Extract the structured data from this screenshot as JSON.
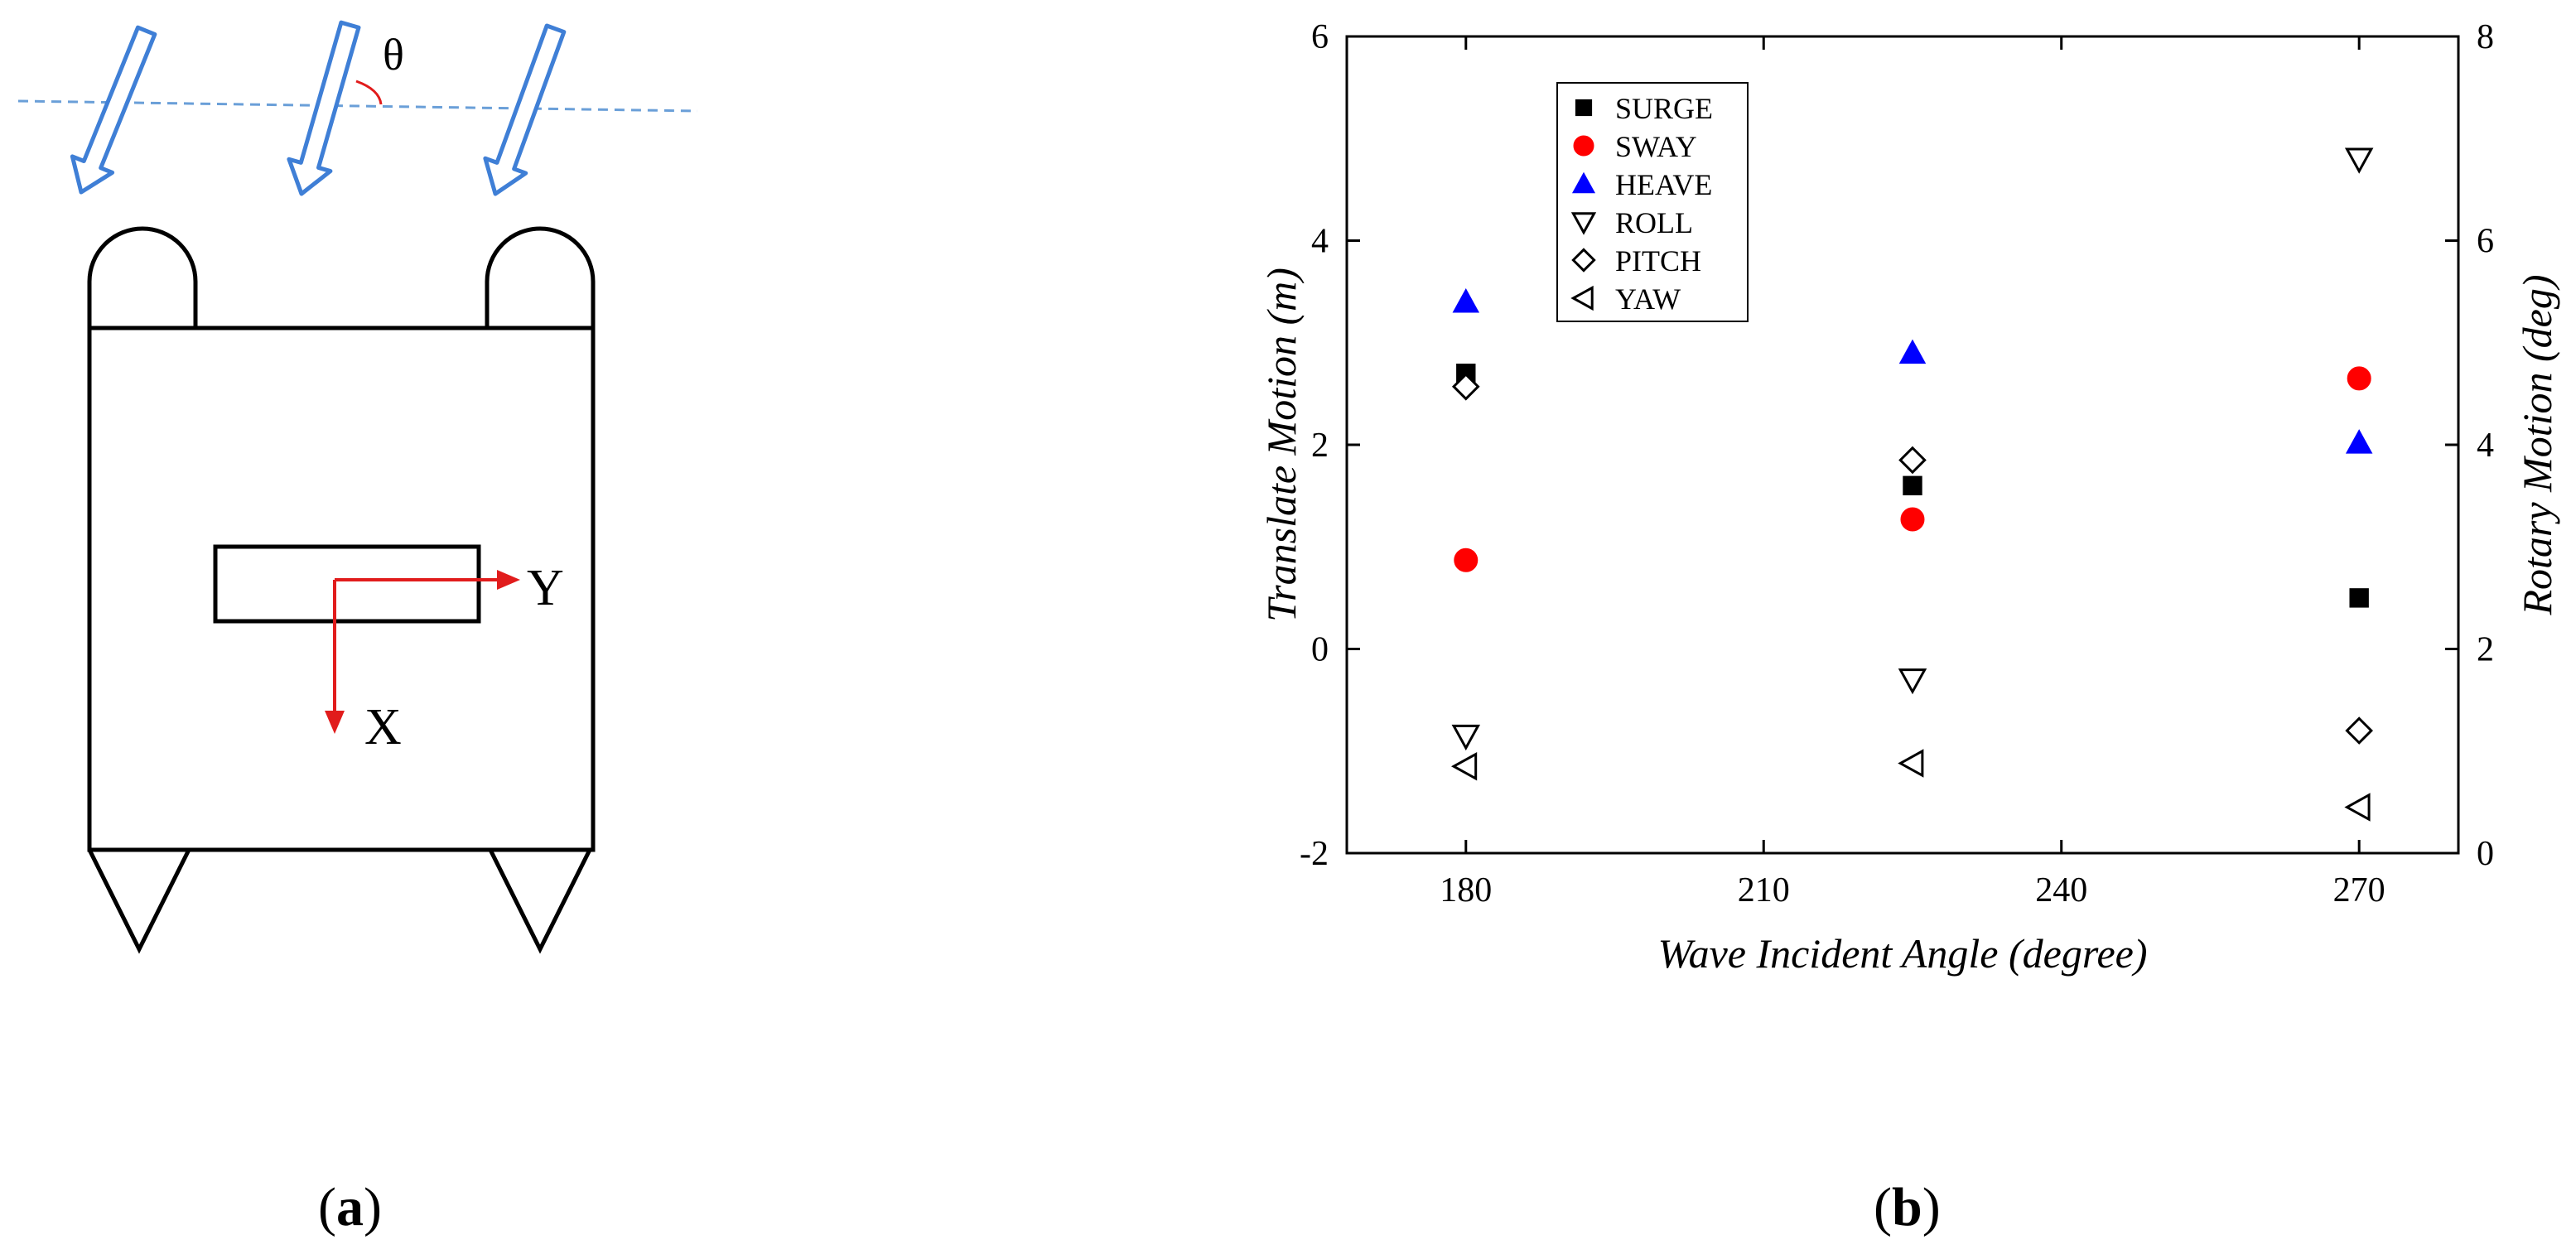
{
  "panel_a": {
    "angle_symbol": "θ",
    "axis_y_label": "Y",
    "axis_x_label": "X",
    "caption_letter": "a",
    "colors": {
      "arrow": "#3f7fd6",
      "axis": "#e11c1c",
      "waterline": "#6a9fd8"
    }
  },
  "panel_b": {
    "caption_letter": "b"
  },
  "chart_data": {
    "type": "scatter",
    "title": "",
    "xlabel": "Wave Incident Angle (degree)",
    "ylabel": "Translate Motion (m)",
    "ylabel_right": "Rotary Motion (deg)",
    "x_ticks": [
      180,
      210,
      240,
      270
    ],
    "y_ticks": [
      -2,
      0,
      2,
      4,
      6
    ],
    "y_right_ticks": [
      0,
      2,
      4,
      6,
      8
    ],
    "xlim": [
      168,
      280
    ],
    "ylim": [
      -2,
      6
    ],
    "ylim_right": [
      0,
      8
    ],
    "legend_position": "top-left",
    "series": [
      {
        "name": "SURGE",
        "axis": "left",
        "marker": "square",
        "color": "#000000",
        "x": [
          180,
          225,
          270
        ],
        "y": [
          2.7,
          1.6,
          0.5
        ]
      },
      {
        "name": "SWAY",
        "axis": "left",
        "marker": "circle",
        "color": "#ff0000",
        "x": [
          180,
          225,
          270
        ],
        "y": [
          0.87,
          1.27,
          2.65
        ]
      },
      {
        "name": "HEAVE",
        "axis": "left",
        "marker": "triangle-up",
        "color": "#0000ff",
        "x": [
          180,
          225,
          270
        ],
        "y": [
          3.4,
          2.9,
          2.02
        ]
      },
      {
        "name": "ROLL",
        "axis": "right",
        "marker": "triangle-down",
        "color": "#000000",
        "x": [
          180,
          225,
          270
        ],
        "y": [
          1.15,
          1.7,
          6.8
        ]
      },
      {
        "name": "PITCH",
        "axis": "right",
        "marker": "diamond",
        "color": "#000000",
        "x": [
          180,
          225,
          270
        ],
        "y": [
          4.57,
          3.85,
          1.2
        ]
      },
      {
        "name": "YAW",
        "axis": "right",
        "marker": "triangle-left",
        "color": "#000000",
        "x": [
          180,
          225,
          270
        ],
        "y": [
          0.85,
          0.88,
          0.45
        ]
      }
    ]
  }
}
